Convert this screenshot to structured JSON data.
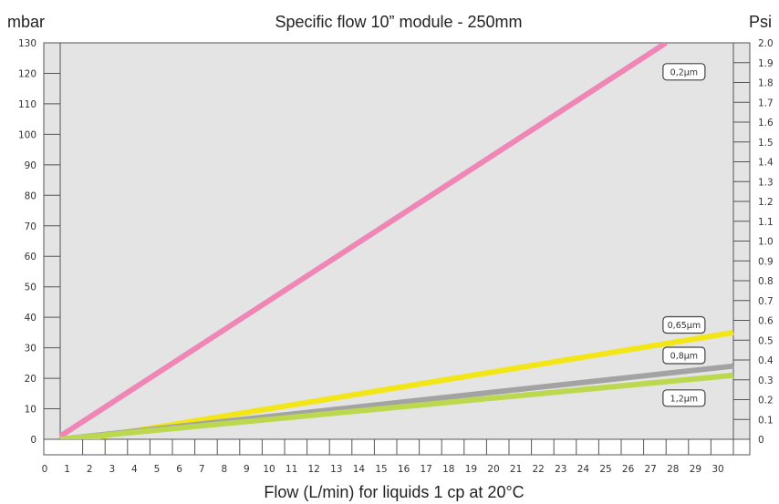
{
  "chart_data": {
    "type": "line",
    "title": "Specific flow 10” module - 250mm",
    "left_axis_unit": "mbar",
    "right_axis_unit": "Psi",
    "xlabel": "Flow (L/min) for liquids 1 cp at 20°C",
    "xlim": [
      0,
      30
    ],
    "ylim": [
      0,
      130
    ],
    "y2lim": [
      0,
      2.0
    ],
    "x_ticks": [
      "0",
      "1",
      "2",
      "3",
      "4",
      "5",
      "6",
      "7",
      "8",
      "9",
      "10",
      "11",
      "12",
      "13",
      "14",
      "15",
      "16",
      "17",
      "18",
      "19",
      "20",
      "21",
      "22",
      "23",
      "24",
      "25",
      "26",
      "27",
      "28",
      "29",
      "30"
    ],
    "y_ticks": [
      "0",
      "10",
      "20",
      "30",
      "40",
      "50",
      "60",
      "70",
      "80",
      "90",
      "100",
      "110",
      "120",
      "130"
    ],
    "y2_ticks": [
      "0",
      "0.1",
      "0.2",
      "0.3",
      "0.4",
      "0.5",
      "0.6",
      "0.7",
      "0.8",
      "0.9",
      "1.0",
      "1.1",
      "1.2",
      "1.3",
      "1.4",
      "1.5",
      "1.6",
      "1.7",
      "1.8",
      "1.9",
      "2.0"
    ],
    "grid": false,
    "plot_background": "#e4e4e4",
    "series": [
      {
        "name": "0,2µm",
        "color": "#ef86b6",
        "points": [
          [
            0,
            1
          ],
          [
            27,
            130
          ]
        ],
        "label_at": [
          27.8,
          120.5
        ]
      },
      {
        "name": "0,65µm",
        "color": "#f2e616",
        "points": [
          [
            1,
            0
          ],
          [
            30,
            35
          ]
        ],
        "label_at": [
          27.8,
          37.5
        ]
      },
      {
        "name": "0,8µm",
        "color": "#a3a3a3",
        "points": [
          [
            0,
            0
          ],
          [
            30,
            24
          ]
        ],
        "label_at": [
          27.8,
          27.5
        ]
      },
      {
        "name": "1,2µm",
        "color": "#bcd84e",
        "points": [
          [
            0,
            0
          ],
          [
            30,
            21
          ]
        ],
        "label_at": [
          27.8,
          13.5
        ]
      }
    ]
  }
}
